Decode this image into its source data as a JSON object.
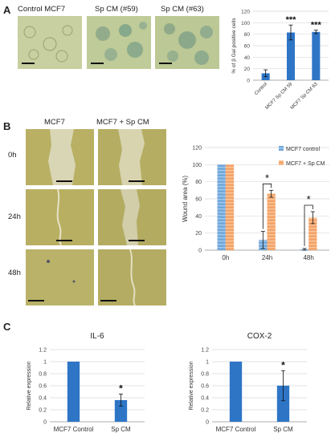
{
  "panels": {
    "A": {
      "letter": "A",
      "image_labels": [
        "Control MCF7",
        "Sp CM (#59)",
        "Sp CM (#63)"
      ]
    },
    "B": {
      "letter": "B",
      "column_labels": [
        "MCF7",
        "MCF7 + Sp CM"
      ],
      "row_labels": [
        "0h",
        "24h",
        "48h"
      ]
    },
    "C": {
      "letter": "C"
    }
  },
  "colors": {
    "bar_blue": "#2e75c6",
    "orange": "#f4a367",
    "blue_stripe": "#6fa8dc",
    "micro_green": "#c9cfa0",
    "micro_olive": "#b6ae62",
    "error": "#111111"
  },
  "chart_data": [
    {
      "id": "A",
      "type": "bar",
      "categories": [
        "Control",
        "MCF7 Sp CM 59",
        "MCF7 Sp CM 63"
      ],
      "values": [
        12,
        83,
        84
      ],
      "errors": [
        6,
        13,
        3
      ],
      "annotations": [
        "",
        "***",
        "***"
      ],
      "ylabel": "% of β Gal positive cells",
      "ylim": [
        0,
        120
      ],
      "yticks": [
        0,
        20,
        40,
        60,
        80,
        100,
        120
      ],
      "grid": true
    },
    {
      "id": "B",
      "type": "bar",
      "categories": [
        "0h",
        "24h",
        "48h"
      ],
      "series": [
        {
          "name": "MCF7 control",
          "values": [
            100,
            12,
            1
          ],
          "errors": [
            0,
            10,
            1
          ]
        },
        {
          "name": "MCF7 + Sp CM",
          "values": [
            100,
            66,
            38
          ],
          "errors": [
            0,
            4,
            7
          ]
        }
      ],
      "annotations": [
        "",
        "*",
        "*"
      ],
      "ylabel": "Wound area (%)",
      "ylim": [
        0,
        120
      ],
      "yticks": [
        0,
        20,
        40,
        60,
        80,
        100,
        120
      ],
      "legend": "top-right",
      "grid": true
    },
    {
      "id": "C1",
      "type": "bar",
      "title": "IL-6",
      "categories": [
        "MCF7 Control",
        "Sp CM"
      ],
      "values": [
        1,
        0.36
      ],
      "errors": [
        0,
        0.1
      ],
      "annotations": [
        "",
        "*"
      ],
      "ylabel": "Relative expression",
      "ylim": [
        0,
        1.2
      ],
      "yticks": [
        "0",
        "0.2",
        "0.4",
        "0.6",
        "0.8",
        "1",
        "1.2"
      ],
      "grid": true
    },
    {
      "id": "C2",
      "type": "bar",
      "title": "COX-2",
      "categories": [
        "MCF7 Control",
        "Sp CM"
      ],
      "values": [
        1,
        0.6
      ],
      "errors": [
        0,
        0.25
      ],
      "annotations": [
        "",
        "*"
      ],
      "ylabel": "Relative expression",
      "ylim": [
        0,
        1.2
      ],
      "yticks": [
        "0",
        "0.2",
        "0.4",
        "0.6",
        "0.8",
        "1",
        "1.2"
      ],
      "grid": true
    }
  ]
}
